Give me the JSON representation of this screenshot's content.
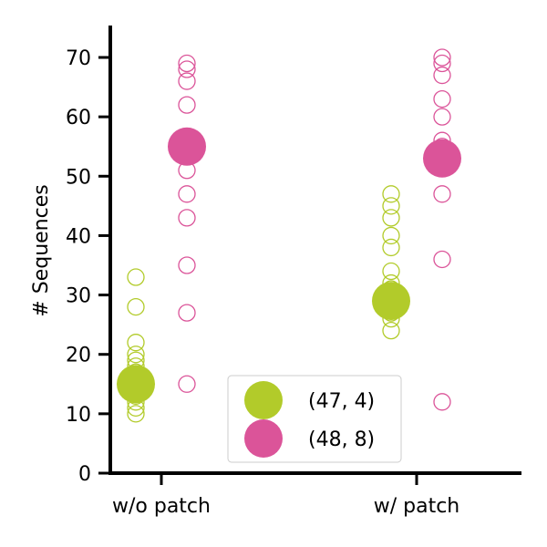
{
  "chart_data": {
    "type": "scatter",
    "categories": [
      "w/o patch",
      "w/ patch"
    ],
    "ylabel": "# Sequences",
    "xlabel": "",
    "ylim": [
      0,
      75
    ],
    "yticks": [
      0,
      10,
      20,
      30,
      40,
      50,
      60,
      70
    ],
    "grid": false,
    "legend_position": "bottom-center",
    "series": [
      {
        "name": "(47, 4)",
        "color": "#b2cb2a",
        "offset_side": "left",
        "highlight": [
          15,
          29
        ],
        "points": [
          [
            10,
            11,
            12,
            13,
            14,
            16,
            17,
            18,
            19,
            20,
            22,
            28,
            33
          ],
          [
            24,
            26,
            27,
            28,
            30,
            31,
            32,
            34,
            38,
            40,
            43,
            45,
            47
          ]
        ]
      },
      {
        "name": "(48, 8)",
        "color": "#db5499",
        "offset_side": "right",
        "highlight": [
          55,
          53
        ],
        "points": [
          [
            15,
            27,
            35,
            43,
            47,
            51,
            54,
            56,
            62,
            66,
            68,
            69
          ],
          [
            12,
            36,
            47,
            52,
            55,
            56,
            60,
            63,
            67,
            69,
            70
          ]
        ]
      }
    ]
  }
}
